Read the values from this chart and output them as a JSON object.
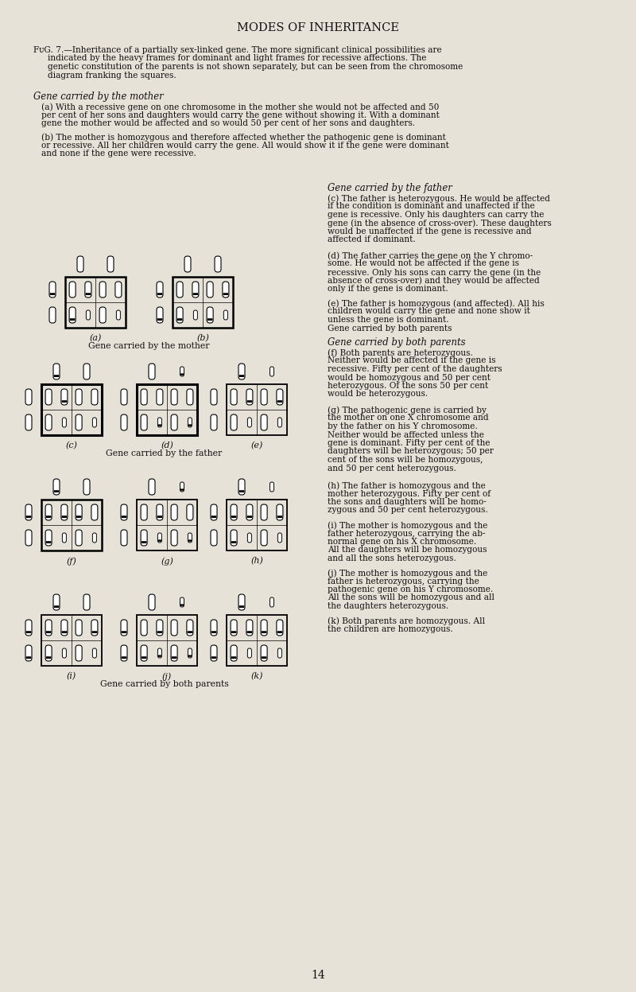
{
  "title": "MODES OF INHERITANCE",
  "bg_color": "#e6e2d8",
  "text_color": "#111111",
  "page_number": "14",
  "fig_caption_line1": "FIG. 7.—Inheritance of a partially sex-linked gene. The more significant clinical possibilities are",
  "fig_caption_line2": "indicated by the heavy frames for dominant and light frames for recessive affections. The",
  "fig_caption_line3": "genetic constitution of the parents is not shown separately, but can be seen from the chromosome",
  "fig_caption_line4": "diagram franking the squares.",
  "header_mother": "Gene carried by the mother",
  "header_father": "Gene carried by the father",
  "header_both": "Gene carried by both parents",
  "text_a1": "(a) With a recessive gene on one chromosome in the mother she would not be affected and 50",
  "text_a2": "per cent of her sons and daughters would carry the gene without showing it. With a dominant",
  "text_a3": "gene the mother would be affected and so would 50 per cent of her sons and daughters.",
  "text_b1": "(b) The mother is homozygous and therefore affected whether the pathogenic gene is dominant",
  "text_b2": "or recessive. All her children would carry the gene. All would show it if the gene were dominant",
  "text_b3": "and none if the gene were recessive.",
  "text_c1": "(c) The father is heterozygous. He would be affected",
  "text_c2": "if the condition is dominant and unaffected if the",
  "text_c3": "gene is recessive. Only his daughters can carry the",
  "text_c4": "gene (in the absence of cross-over). These daughters",
  "text_c5": "would be unaffected if the gene is recessive and",
  "text_c6": "affected if dominant.",
  "text_d1": "(d) The father carries the gene on the Y chromo-",
  "text_d2": "some. He would not be affected if the gene is",
  "text_d3": "recessive. Only his sons can carry the gene (in the",
  "text_d4": "absence of cross-over) and they would be affected",
  "text_d5": "only if the gene is dominant.",
  "text_e1": "(e) The father is homozygous (and affected). All his",
  "text_e2": "children would carry the gene and none show it",
  "text_e3": "unless the gene is dominant.",
  "text_f1": "(f) Both parents are heterozygous.",
  "text_f2": "Neither would be affected if the gene is",
  "text_f3": "recessive. Fifty per cent of the daughters",
  "text_f4": "would be homozygous and 50 per cent",
  "text_f5": "heterozygous. Of the sons 50 per cent",
  "text_f6": "would be heterozygous.",
  "text_g1": "(g) The pathogenic gene is carried by",
  "text_g2": "the mother on one X chromosome and",
  "text_g3": "by the father on his Y chromosome.",
  "text_g4": "Neither would be affected unless the",
  "text_g5": "gene is dominant. Fifty per cent of the",
  "text_g6": "daughters will be heterozygous; 50 per",
  "text_g7": "cent of the sons will be homozygous,",
  "text_g8": "and 50 per cent heterozygous.",
  "text_h1": "(h) The father is homozygous and the",
  "text_h2": "mother heterozygous. Fifty per cent of",
  "text_h3": "the sons and daughters will be homo-",
  "text_h4": "zygous and 50 per cent heterozygous.",
  "text_i1": "(i) The mother is homozygous and the",
  "text_i2": "father heterozygous, carrying the ab-",
  "text_i3": "normal gene on his X chromosome.",
  "text_i4": "All the daughters will be homozygous",
  "text_i5": "and all the sons heterozygous.",
  "text_j1": "(j) The mother is homozygous and the",
  "text_j2": "father is heterozygous, carrying the",
  "text_j3": "pathogenic gene on his Y chromosome.",
  "text_j4": "All the sons will be homozygous and all",
  "text_j5": "the daughters heterozygous.",
  "text_k1": "(k) Both parents are homozygous. All",
  "text_k2": "the children are homozygous."
}
